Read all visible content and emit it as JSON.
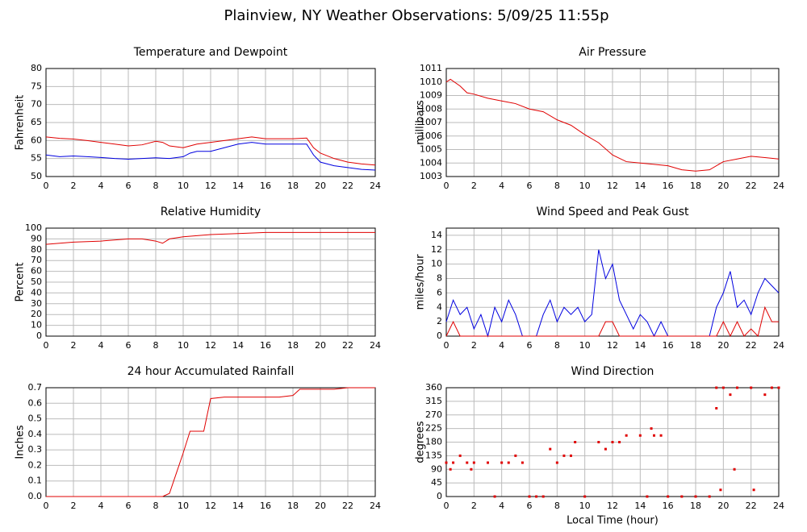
{
  "title": "Plainview, NY Weather Observations: 5/09/25 11:55p",
  "chart_data": [
    {
      "type": "line",
      "title": "Temperature and Dewpoint",
      "ylabel": "Fahrenheit",
      "x": [
        0,
        1,
        2,
        3,
        4,
        5,
        6,
        7,
        8,
        8.5,
        9,
        10,
        10.5,
        11,
        12,
        13,
        14,
        15,
        16,
        17,
        18,
        19,
        19.5,
        20,
        21,
        22,
        23,
        24
      ],
      "series": [
        {
          "name": "Temperature",
          "color": "#e00000",
          "values": [
            61,
            60.6,
            60.4,
            60,
            59.5,
            59,
            58.5,
            58.8,
            59.8,
            59.5,
            58.5,
            58,
            58.5,
            59,
            59.5,
            60,
            60.5,
            61,
            60.5,
            60.5,
            60.5,
            60.7,
            58,
            56.5,
            55,
            54,
            53.5,
            53.2
          ]
        },
        {
          "name": "Dewpoint",
          "color": "#0000e0",
          "values": [
            56,
            55.5,
            55.7,
            55.5,
            55.3,
            55,
            54.8,
            55,
            55.2,
            55.1,
            55,
            55.5,
            56.5,
            57,
            57,
            58,
            59,
            59.5,
            59,
            59,
            59,
            59,
            56,
            54,
            53,
            52.5,
            52,
            51.8
          ]
        }
      ],
      "xlim": [
        0,
        24
      ],
      "xticks": [
        0,
        2,
        4,
        6,
        8,
        10,
        12,
        14,
        16,
        18,
        20,
        22,
        24
      ],
      "ylim": [
        50,
        80
      ],
      "yticks": [
        50,
        55,
        60,
        65,
        70,
        75,
        80
      ],
      "grid": true
    },
    {
      "type": "line",
      "title": "Air Pressure",
      "ylabel": "millibars",
      "x": [
        0,
        0.3,
        1,
        1.5,
        2,
        3,
        4,
        5,
        6,
        7,
        8,
        9,
        10,
        11,
        12,
        13,
        14,
        15,
        16,
        17,
        18,
        19,
        20,
        21,
        22,
        23,
        24
      ],
      "series": [
        {
          "name": "Pressure",
          "color": "#e00000",
          "values": [
            1010,
            1010.2,
            1009.7,
            1009.2,
            1009.1,
            1008.8,
            1008.6,
            1008.4,
            1008,
            1007.8,
            1007.2,
            1006.8,
            1006.1,
            1005.5,
            1004.6,
            1004.1,
            1004,
            1003.9,
            1003.8,
            1003.5,
            1003.4,
            1003.5,
            1004.1,
            1004.3,
            1004.5,
            1004.4,
            1004.3
          ]
        }
      ],
      "xlim": [
        0,
        24
      ],
      "xticks": [
        0,
        2,
        4,
        6,
        8,
        10,
        12,
        14,
        16,
        18,
        20,
        22,
        24
      ],
      "ylim": [
        1003,
        1011
      ],
      "yticks": [
        1003,
        1004,
        1005,
        1006,
        1007,
        1008,
        1009,
        1010,
        1011
      ],
      "grid": true
    },
    {
      "type": "line",
      "title": "Relative Humidity",
      "ylabel": "Percent",
      "x": [
        0,
        2,
        4,
        6,
        7,
        8,
        8.5,
        9,
        10,
        11,
        12,
        14,
        16,
        18,
        20,
        22,
        24
      ],
      "series": [
        {
          "name": "Humidity",
          "color": "#e00000",
          "values": [
            85,
            87,
            88,
            90,
            90,
            88,
            86,
            90,
            92,
            93,
            94,
            95,
            96,
            96,
            96,
            96,
            96
          ]
        }
      ],
      "xlim": [
        0,
        24
      ],
      "xticks": [
        0,
        2,
        4,
        6,
        8,
        10,
        12,
        14,
        16,
        18,
        20,
        22,
        24
      ],
      "ylim": [
        0,
        100
      ],
      "yticks": [
        0,
        10,
        20,
        30,
        40,
        50,
        60,
        70,
        80,
        90,
        100
      ],
      "grid": true
    },
    {
      "type": "line",
      "title": "Wind Speed and Peak Gust",
      "ylabel": "miles/hour",
      "x": [
        0,
        0.5,
        1,
        1.5,
        2,
        2.5,
        3,
        3.5,
        4,
        4.5,
        5,
        5.5,
        6,
        6.5,
        7,
        7.5,
        8,
        8.5,
        9,
        9.5,
        10,
        10.5,
        11,
        11.5,
        12,
        12.5,
        13,
        13.5,
        14,
        14.5,
        15,
        15.5,
        16,
        17,
        18,
        19,
        19.5,
        20,
        20.5,
        21,
        21.5,
        22,
        22.5,
        23,
        23.5,
        24
      ],
      "series": [
        {
          "name": "Wind Speed",
          "color": "#0000e0",
          "values": [
            2,
            5,
            3,
            4,
            1,
            3,
            0,
            4,
            2,
            5,
            3,
            0,
            0,
            0,
            3,
            5,
            2,
            4,
            3,
            4,
            2,
            3,
            12,
            8,
            10,
            5,
            3,
            1,
            3,
            2,
            0,
            2,
            0,
            0,
            0,
            0,
            4,
            6,
            9,
            4,
            5,
            3,
            6,
            8,
            7,
            6
          ]
        },
        {
          "name": "Peak Gust",
          "color": "#e00000",
          "values": [
            0,
            2,
            0,
            0,
            0,
            0,
            0,
            0,
            0,
            0,
            0,
            0,
            0,
            0,
            0,
            0,
            0,
            0,
            0,
            0,
            0,
            0,
            0,
            2,
            2,
            0,
            0,
            0,
            0,
            0,
            0,
            0,
            0,
            0,
            0,
            0,
            0,
            2,
            0,
            2,
            0,
            1,
            0,
            4,
            2,
            2
          ]
        }
      ],
      "xlim": [
        0,
        24
      ],
      "xticks": [
        0,
        2,
        4,
        6,
        8,
        10,
        12,
        14,
        16,
        18,
        20,
        22,
        24
      ],
      "ylim": [
        0,
        15
      ],
      "yticks": [
        0,
        2,
        4,
        6,
        8,
        10,
        12,
        14
      ],
      "grid": true
    },
    {
      "type": "line",
      "title": "24 hour Accumulated Rainfall",
      "ylabel": "Inches",
      "x": [
        0,
        8.5,
        9,
        9.5,
        10,
        10.5,
        11,
        11.5,
        12,
        13,
        14,
        16,
        17,
        18,
        18.5,
        20,
        21,
        22,
        24
      ],
      "series": [
        {
          "name": "Rainfall",
          "color": "#e00000",
          "values": [
            0,
            0,
            0.02,
            0.15,
            0.28,
            0.42,
            0.42,
            0.42,
            0.63,
            0.64,
            0.64,
            0.64,
            0.64,
            0.65,
            0.69,
            0.69,
            0.69,
            0.7,
            0.7
          ]
        }
      ],
      "xlim": [
        0,
        24
      ],
      "xticks": [
        0,
        2,
        4,
        6,
        8,
        10,
        12,
        14,
        16,
        18,
        20,
        22,
        24
      ],
      "ylim": [
        0,
        0.7
      ],
      "yticks": [
        {
          "value": 0,
          "label": "0.0"
        },
        0.1,
        0.2,
        0.3,
        0.4,
        0.5,
        0.6,
        0.7
      ],
      "grid": true
    },
    {
      "type": "scatter",
      "title": "Wind Direction",
      "ylabel": "degrees",
      "xlabel": "Local Time (hour)",
      "x": [
        0,
        0.5,
        1,
        1.5,
        2,
        3,
        3.5,
        4,
        4.5,
        5,
        5.5,
        6,
        6.5,
        7,
        7.5,
        8,
        8.5,
        9,
        9.3,
        10,
        11,
        11.5,
        12,
        12.5,
        13,
        14,
        14.5,
        15,
        15.5,
        16,
        17,
        18,
        19,
        19.5,
        20,
        20.5,
        21,
        22,
        23,
        23.5,
        24,
        19.5,
        19.8,
        22.2,
        20.8,
        0.3,
        1.8,
        14.8
      ],
      "series": [
        {
          "name": "Direction",
          "color": "#e00000",
          "values": [
            112,
            112,
            135,
            112,
            112,
            112,
            0,
            112,
            112,
            135,
            112,
            0,
            0,
            0,
            157,
            112,
            135,
            135,
            180,
            0,
            180,
            157,
            180,
            180,
            202,
            202,
            0,
            202,
            202,
            0,
            0,
            0,
            0,
            360,
            360,
            337,
            360,
            360,
            337,
            360,
            360,
            292,
            22,
            22,
            90,
            90,
            90,
            225
          ]
        }
      ],
      "xlim": [
        0,
        24
      ],
      "xticks": [
        0,
        2,
        4,
        6,
        8,
        10,
        12,
        14,
        16,
        18,
        20,
        22,
        24
      ],
      "ylim": [
        0,
        360
      ],
      "yticks": [
        0,
        45,
        90,
        135,
        180,
        225,
        270,
        315,
        360
      ],
      "grid": true
    }
  ]
}
